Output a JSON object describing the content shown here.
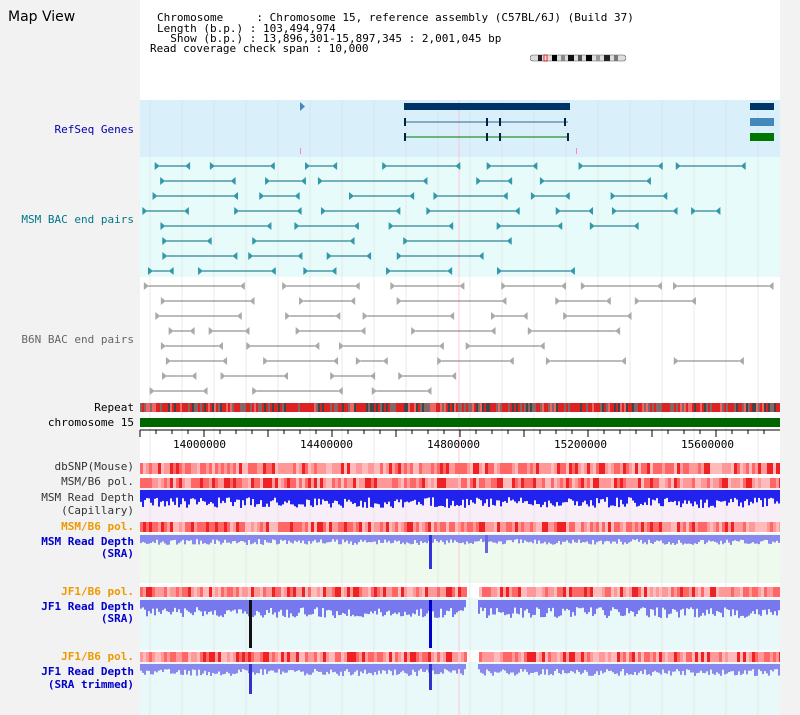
{
  "app": {
    "title": "Map View"
  },
  "header": {
    "chromosome_label": "Chromosome     : Chromosome 15, reference assembly (C57BL/6J) (Build 37)",
    "length_label": "Length (b.p.) : 103,494,974",
    "show_label": "  Show (b.p.) : 13,896,301-15,897,345 : 2,001,045 bp",
    "coverage_label": "Read coverage check span : 10,000"
  },
  "tracks": {
    "refseq": "RefSeq Genes",
    "msm_bac": "MSM BAC end pairs",
    "b6n_bac": "B6N BAC end pairs",
    "repeat": "Repeat",
    "chromosome": "chromosome 15",
    "dbsnp": "dbSNP(Mouse)",
    "msm_b6_pol_1": "MSM/B6 pol.",
    "msm_read_depth_cap_1": "MSM Read Depth",
    "msm_read_depth_cap_2": "(Capillary)",
    "msm_b6_pol_2": "MSM/B6 pol.",
    "msm_read_depth_sra_1": "MSM Read Depth",
    "msm_read_depth_sra_2": "(SRA)",
    "jf1_b6_pol_1": "JF1/B6 pol.",
    "jf1_read_depth_sra_1": "JF1 Read Depth",
    "jf1_read_depth_sra_2": "(SRA)",
    "jf1_b6_pol_2": "JF1/B6 pol.",
    "jf1_read_depth_trim_1": "JF1 Read Depth",
    "jf1_read_depth_trim_2": "(SRA trimmed)"
  },
  "axis": {
    "ticks": [
      "14000000",
      "14400000",
      "14800000",
      "15200000",
      "15600000"
    ]
  },
  "colors": {
    "refseq_label": "#0000aa",
    "msm_label": "#007788",
    "b6n_label": "#666666",
    "orange_label": "#ee9900",
    "blue_label": "#0000cc",
    "chromosome_bar": "#006600",
    "gene_dark": "#003366",
    "gene_mid": "#4488bb",
    "gene_green": "#007700"
  }
}
